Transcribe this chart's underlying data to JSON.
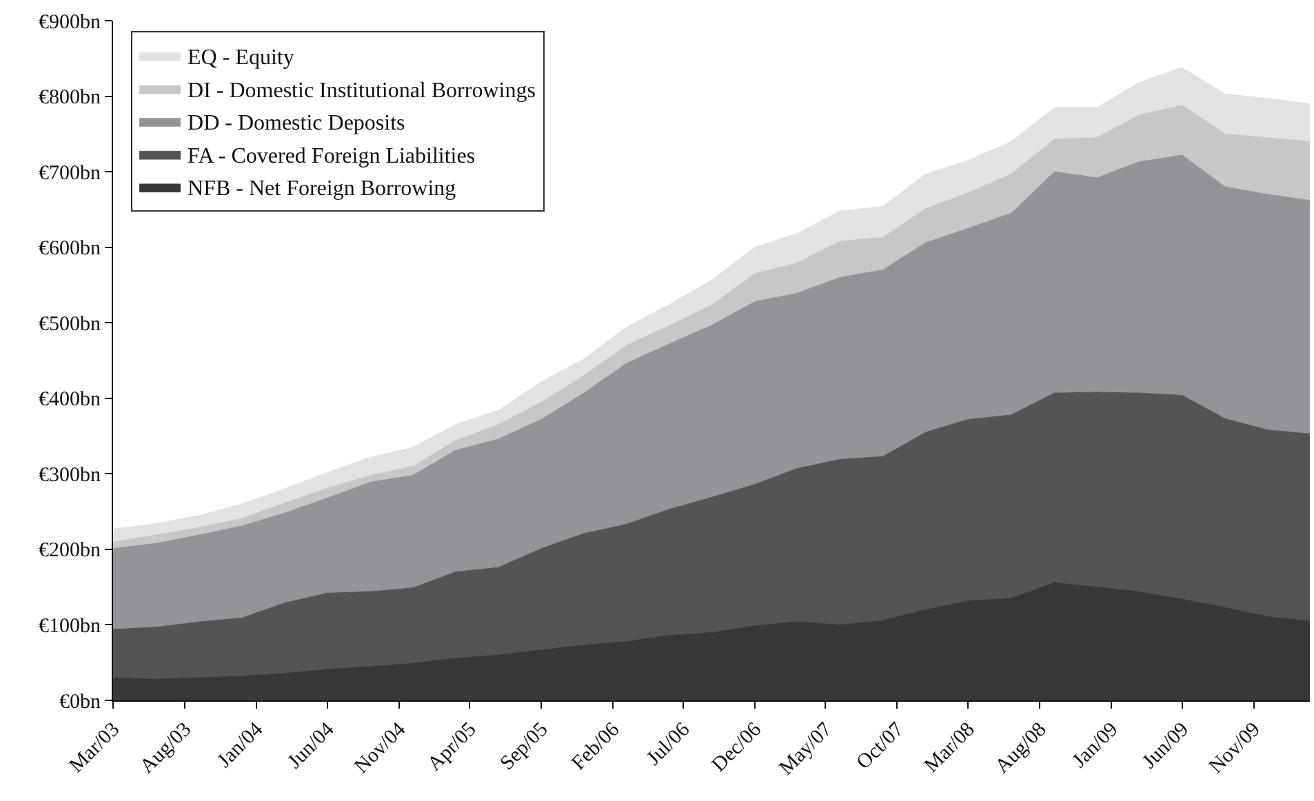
{
  "chart_data": {
    "type": "area",
    "stacked": true,
    "legend": "top left",
    "grid": false,
    "x": [
      "2003-03",
      "2003-06",
      "2003-09",
      "2003-12",
      "2004-03",
      "2004-06",
      "2004-09",
      "2004-12",
      "2005-03",
      "2005-06",
      "2005-09",
      "2005-12",
      "2006-03",
      "2006-06",
      "2006-09",
      "2006-12",
      "2007-03",
      "2007-06",
      "2007-09",
      "2007-12",
      "2008-03",
      "2008-06",
      "2008-09",
      "2008-12",
      "2009-03",
      "2009-06",
      "2009-09",
      "2009-12",
      "2010-03"
    ],
    "xlim": [
      "2003-03",
      "2010-03"
    ],
    "xticks": [
      {
        "value": "2003-03",
        "label": "Mar/03"
      },
      {
        "value": "2003-08",
        "label": "Aug/03"
      },
      {
        "value": "2004-01",
        "label": "Jan/04"
      },
      {
        "value": "2004-06",
        "label": "Jun/04"
      },
      {
        "value": "2004-11",
        "label": "Nov/04"
      },
      {
        "value": "2005-04",
        "label": "Apr/05"
      },
      {
        "value": "2005-09",
        "label": "Sep/05"
      },
      {
        "value": "2006-02",
        "label": "Feb/06"
      },
      {
        "value": "2006-07",
        "label": "Jul/06"
      },
      {
        "value": "2006-12",
        "label": "Dec/06"
      },
      {
        "value": "2007-05",
        "label": "May/07"
      },
      {
        "value": "2007-10",
        "label": "Oct/07"
      },
      {
        "value": "2008-03",
        "label": "Mar/08"
      },
      {
        "value": "2008-08",
        "label": "Aug/08"
      },
      {
        "value": "2009-01",
        "label": "Jan/09"
      },
      {
        "value": "2009-06",
        "label": "Jun/09"
      },
      {
        "value": "2009-11",
        "label": "Nov/09"
      }
    ],
    "ylim": [
      0,
      900
    ],
    "yticks": [
      {
        "value": 0,
        "label": "€0bn"
      },
      {
        "value": 100,
        "label": "€100bn"
      },
      {
        "value": 200,
        "label": "€200bn"
      },
      {
        "value": 300,
        "label": "€300bn"
      },
      {
        "value": 400,
        "label": "€400bn"
      },
      {
        "value": 500,
        "label": "€500bn"
      },
      {
        "value": 600,
        "label": "€600bn"
      },
      {
        "value": 700,
        "label": "€700bn"
      },
      {
        "value": 800,
        "label": "€800bn"
      },
      {
        "value": 900,
        "label": "€900bn"
      }
    ],
    "series": [
      {
        "name": "NFB - Net Foreign Borrowing",
        "color": "#383838",
        "values": [
          30,
          28,
          30,
          32,
          36,
          41,
          45,
          49,
          56,
          60,
          67,
          73,
          78,
          86,
          90,
          99,
          104,
          100,
          106,
          120,
          132,
          135,
          156,
          150,
          144,
          134,
          123,
          111,
          105
        ]
      },
      {
        "name": "FA - Covered Foreign Liabilities",
        "color": "#545456",
        "values": [
          64,
          69,
          74,
          77,
          93,
          101,
          99,
          100,
          114,
          116,
          134,
          148,
          155,
          167,
          179,
          187,
          203,
          219,
          217,
          235,
          240,
          243,
          251,
          258,
          263,
          270,
          250,
          247,
          248
        ]
      },
      {
        "name": "DD - Domestic Deposits",
        "color": "#939497",
        "values": [
          107,
          111,
          115,
          122,
          119,
          126,
          145,
          149,
          161,
          170,
          171,
          186,
          213,
          219,
          228,
          242,
          232,
          241,
          247,
          251,
          253,
          267,
          293,
          284,
          306,
          318,
          307,
          312,
          309
        ]
      },
      {
        "name": "DI - Domestic Institutional Borrowings",
        "color": "#c6c7c9",
        "values": [
          9,
          11,
          10,
          10,
          13,
          13,
          9,
          12,
          13,
          19,
          23,
          23,
          24,
          24,
          27,
          37,
          40,
          48,
          43,
          45,
          47,
          52,
          43,
          53,
          62,
          66,
          70,
          75,
          78
        ]
      },
      {
        "name": "EQ - Equity",
        "color": "#e1e2e4",
        "values": [
          17,
          15,
          16,
          19,
          19,
          21,
          24,
          25,
          21,
          19,
          27,
          22,
          24,
          28,
          33,
          35,
          39,
          40,
          41,
          46,
          43,
          43,
          42,
          40,
          43,
          50,
          53,
          52,
          50
        ]
      }
    ]
  }
}
